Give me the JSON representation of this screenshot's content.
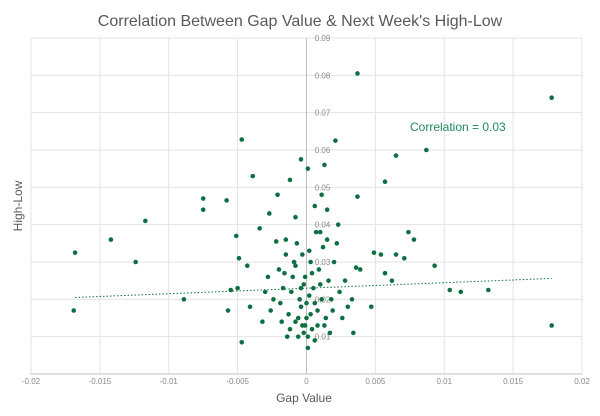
{
  "chart_data": {
    "type": "scatter",
    "title": "Correlation Between Gap Value & Next Week's High-Low",
    "xlabel": "Gap Value",
    "ylabel": "High-Low",
    "xlim": [
      -0.02,
      0.02
    ],
    "ylim": [
      0,
      0.09
    ],
    "x_ticks": [
      "-0.02",
      "-0.015",
      "-0.01",
      "-0.005",
      "0",
      "0.005",
      "0.01",
      "0.015",
      "0.02"
    ],
    "y_ticks": [
      "0.01",
      "0.02",
      "0.03",
      "0.04",
      "0.05",
      "0.06",
      "0.07",
      "0.08",
      "0.09"
    ],
    "grid": true,
    "annotation": "Correlation = 0.03",
    "marker_color": "#0e7040",
    "trendline": {
      "style": "dotted",
      "color": "#0e7040",
      "x": [
        -0.0168,
        0.0178
      ],
      "y": [
        0.0205,
        0.0256
      ]
    },
    "series": [
      {
        "points": [
          [
            0.0037,
            0.0805
          ],
          [
            0.0178,
            0.074
          ],
          [
            0.0087,
            0.06
          ],
          [
            0.0065,
            0.0585
          ],
          [
            -0.0047,
            0.0628
          ],
          [
            0.0021,
            0.0625
          ],
          [
            0.0057,
            0.0515
          ],
          [
            0.0037,
            0.0475
          ],
          [
            -0.0168,
            0.0325
          ],
          [
            -0.0169,
            0.017
          ],
          [
            -0.0142,
            0.036
          ],
          [
            -0.0124,
            0.03
          ],
          [
            -0.0117,
            0.041
          ],
          [
            -0.0089,
            0.02
          ],
          [
            -0.0075,
            0.047
          ],
          [
            -0.0075,
            0.044
          ],
          [
            -0.0058,
            0.0465
          ],
          [
            -0.0051,
            0.037
          ],
          [
            -0.0049,
            0.031
          ],
          [
            -0.005,
            0.023
          ],
          [
            -0.0055,
            0.0225
          ],
          [
            -0.0057,
            0.017
          ],
          [
            -0.0047,
            0.0085
          ],
          [
            -0.0041,
            0.018
          ],
          [
            -0.0043,
            0.029
          ],
          [
            -0.0039,
            0.053
          ],
          [
            -0.0022,
            0.0355
          ],
          [
            -0.0028,
            0.026
          ],
          [
            -0.0032,
            0.014
          ],
          [
            0.0023,
            0.04
          ],
          [
            0.0028,
            0.025
          ],
          [
            0.0033,
            0.02
          ],
          [
            0.0039,
            0.028
          ],
          [
            0.0047,
            0.018
          ],
          [
            0.0054,
            0.032
          ],
          [
            0.0057,
            0.027
          ],
          [
            0.0062,
            0.025
          ],
          [
            0.0065,
            0.032
          ],
          [
            0.0071,
            0.031
          ],
          [
            0.0074,
            0.038
          ],
          [
            0.0078,
            0.036
          ],
          [
            0.0093,
            0.029
          ],
          [
            0.0104,
            0.0225
          ],
          [
            0.0112,
            0.022
          ],
          [
            0.0132,
            0.0225
          ],
          [
            0.0178,
            0.013
          ],
          [
            0.0036,
            0.0285
          ],
          [
            0.0049,
            0.0325
          ],
          [
            0.0034,
            0.011
          ],
          [
            0.0001,
            0.055
          ],
          [
            -0.0004,
            0.0575
          ],
          [
            0.0011,
            0.048
          ],
          [
            0.0013,
            0.056
          ],
          [
            -0.0012,
            0.052
          ],
          [
            -0.0021,
            0.048
          ],
          [
            -0.0027,
            0.043
          ],
          [
            -0.0034,
            0.039
          ],
          [
            0.0022,
            0.035
          ],
          [
            0.0015,
            0.044
          ],
          [
            0.001,
            0.038
          ],
          [
            -0.0008,
            0.042
          ],
          [
            -0.0015,
            0.036
          ],
          [
            0.0006,
            0.045
          ],
          [
            0.0,
            0.015
          ],
          [
            0.0004,
            0.012
          ],
          [
            -0.0004,
            0.018
          ],
          [
            0.0008,
            0.017
          ],
          [
            -0.0008,
            0.014
          ],
          [
            0.0002,
            0.021
          ],
          [
            -0.0002,
            0.024
          ],
          [
            0.0006,
            0.009
          ],
          [
            -0.0006,
            0.01
          ],
          [
            0.0011,
            0.02
          ],
          [
            -0.0011,
            0.022
          ],
          [
            0.0013,
            0.013
          ],
          [
            -0.0013,
            0.016
          ],
          [
            0.0016,
            0.025
          ],
          [
            -0.0016,
            0.027
          ],
          [
            0.0003,
            0.03
          ],
          [
            -0.0003,
            0.032
          ],
          [
            0.0009,
            0.028
          ],
          [
            -0.0009,
            0.03
          ],
          [
            0.0019,
            0.017
          ],
          [
            -0.0019,
            0.019
          ],
          [
            0.0001,
            0.007
          ],
          [
            -0.0001,
            0.026
          ],
          [
            0.0005,
            0.023
          ],
          [
            -0.0005,
            0.02
          ],
          [
            0.0012,
            0.034
          ],
          [
            -0.0012,
            0.012
          ],
          [
            0.0017,
            0.011
          ],
          [
            -0.0017,
            0.023
          ],
          [
            0.0024,
            0.022
          ],
          [
            -0.0024,
            0.02
          ],
          [
            0.0007,
            0.038
          ],
          [
            -0.0007,
            0.035
          ],
          [
            0.002,
            0.03
          ],
          [
            -0.002,
            0.028
          ],
          [
            0.0026,
            0.015
          ],
          [
            -0.0026,
            0.017
          ],
          [
            0.0003,
            0.016
          ],
          [
            -0.0003,
            0.013
          ],
          [
            0.0014,
            0.015
          ],
          [
            -0.0014,
            0.01
          ],
          [
            0.0,
            0.019
          ],
          [
            0.001,
            0.024
          ],
          [
            -0.001,
            0.026
          ],
          [
            0.0002,
            0.033
          ],
          [
            -0.0002,
            0.011
          ],
          [
            0.0008,
            0.013
          ],
          [
            -0.0008,
            0.029
          ],
          [
            0.0018,
            0.02
          ],
          [
            -0.0018,
            0.014
          ],
          [
            0.0004,
            0.027
          ],
          [
            -0.0004,
            0.023
          ],
          [
            0.003,
            0.018
          ],
          [
            -0.003,
            0.022
          ],
          [
            0.0015,
            0.036
          ],
          [
            -0.0015,
            0.032
          ],
          [
            0.0006,
            0.019
          ],
          [
            -0.0006,
            0.015
          ],
          [
            0.0001,
            0.01
          ],
          [
            -0.0001,
            0.013
          ]
        ]
      }
    ]
  }
}
